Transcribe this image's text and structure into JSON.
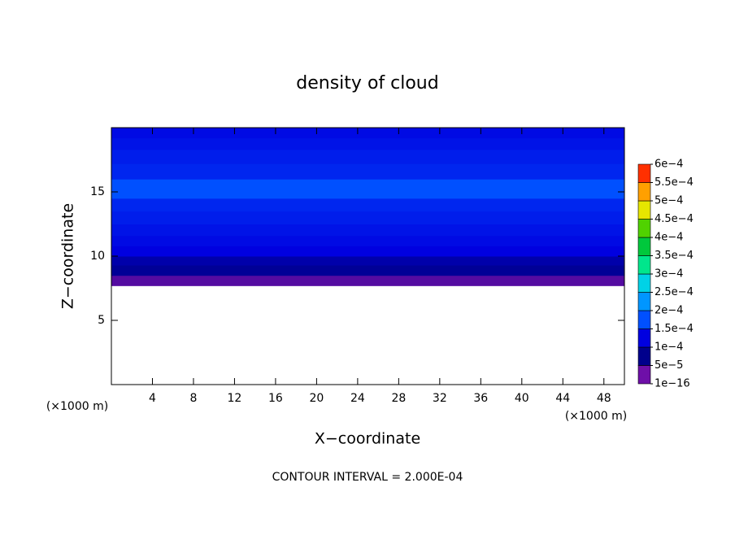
{
  "chart_data": {
    "type": "contour",
    "title": "density of cloud",
    "x_label": "X−coordinate",
    "y_label": "Z−coordinate",
    "x_unit": "(×1000 m)",
    "y_unit": "(×1000 m)",
    "annotation": "CONTOUR INTERVAL = 2.000E-04",
    "xlim": [
      0,
      50
    ],
    "ylim": [
      0,
      20
    ],
    "xticks": [
      4,
      8,
      12,
      16,
      20,
      24,
      28,
      32,
      36,
      40,
      44,
      48
    ],
    "yticks": [
      5,
      10,
      15
    ],
    "field": {
      "z": [
        7.7,
        8.5,
        9.3,
        10.0,
        10.8,
        11.6,
        12.5,
        13.5,
        14.5,
        16.0,
        17.2,
        18.3,
        19.2
      ],
      "values": [
        2e-05,
        6e-05,
        8e-05,
        0.0001,
        0.00011,
        0.00012,
        0.00013,
        0.00014,
        0.00015,
        0.00014,
        0.00013,
        0.00012,
        0.00011
      ]
    },
    "colorbar": {
      "ticks": [
        {
          "value": 1e-16,
          "label": "1e−16"
        },
        {
          "value": 5e-05,
          "label": "5e−5"
        },
        {
          "value": 0.0001,
          "label": "1e−4"
        },
        {
          "value": 0.00015,
          "label": "1.5e−4"
        },
        {
          "value": 0.0002,
          "label": "2e−4"
        },
        {
          "value": 0.00025,
          "label": "2.5e−4"
        },
        {
          "value": 0.0003,
          "label": "3e−4"
        },
        {
          "value": 0.00035,
          "label": "3.5e−4"
        },
        {
          "value": 0.0004,
          "label": "4e−4"
        },
        {
          "value": 0.00045,
          "label": "4.5e−4"
        },
        {
          "value": 0.0005,
          "label": "5e−4"
        },
        {
          "value": 0.00055,
          "label": "5.5e−4"
        },
        {
          "value": 0.0006,
          "label": "6e−4"
        }
      ],
      "colors": [
        "#6e0fa8",
        "#00008c",
        "#0000e0",
        "#0050ff",
        "#0096ff",
        "#00d2e6",
        "#00e68c",
        "#00c83c",
        "#50d200",
        "#e6e600",
        "#ffa000",
        "#ff3000",
        "#ff8c8c"
      ]
    }
  }
}
